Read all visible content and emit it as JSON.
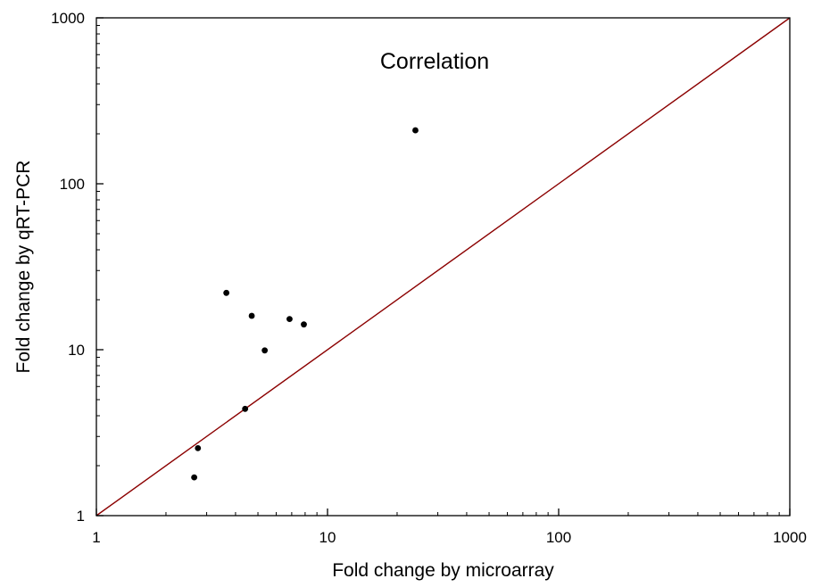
{
  "chart_data": {
    "type": "scatter",
    "title": "Correlation",
    "xlabel": "Fold change by microarray",
    "ylabel": "Fold change by qRT-PCR",
    "xscale": "log",
    "yscale": "log",
    "xlim": [
      1,
      1000
    ],
    "ylim": [
      1,
      1000
    ],
    "xticks": [
      "1",
      "10",
      "100",
      "1000"
    ],
    "yticks": [
      "1",
      "10",
      "100",
      "1000"
    ],
    "grid": false,
    "points": [
      {
        "x": 2.65,
        "y": 1.7
      },
      {
        "x": 2.75,
        "y": 2.55
      },
      {
        "x": 3.65,
        "y": 22
      },
      {
        "x": 4.4,
        "y": 4.4
      },
      {
        "x": 4.7,
        "y": 16
      },
      {
        "x": 5.35,
        "y": 9.9
      },
      {
        "x": 6.85,
        "y": 15.3
      },
      {
        "x": 7.9,
        "y": 14.2
      },
      {
        "x": 24,
        "y": 210
      }
    ],
    "reference_line": {
      "type": "identity",
      "from": 1,
      "to": 1000
    },
    "colors": {
      "points": "#000000",
      "reference_line": "#8b0000",
      "axes": "#000000"
    }
  }
}
